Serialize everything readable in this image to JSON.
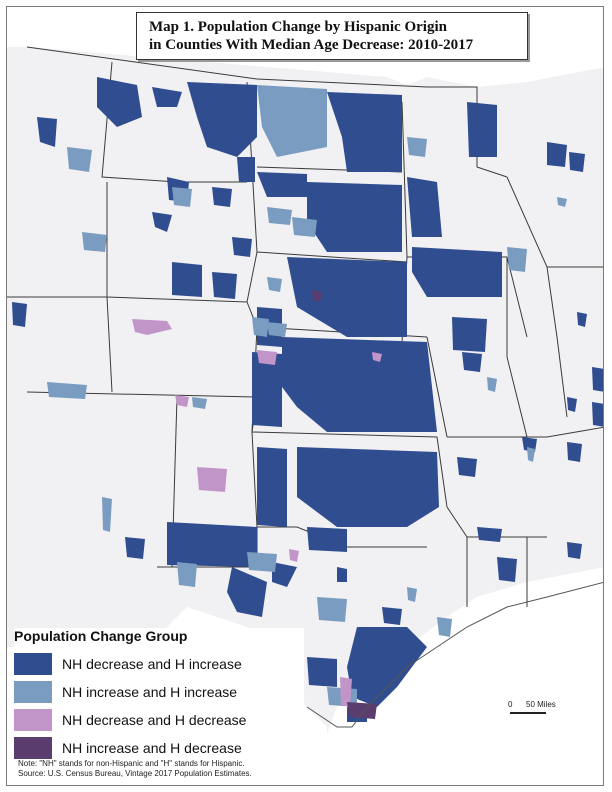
{
  "map": {
    "title_line1": "Map 1. Population Change by Hispanic Origin",
    "title_line2": "in Counties With Median Age Decrease: 2010-2017"
  },
  "legend": {
    "title": "Population Change Group",
    "items": [
      {
        "label": "NH decrease and H increase",
        "color": "#2f4d8f"
      },
      {
        "label": "NH increase and H increase",
        "color": "#7a9cc0"
      },
      {
        "label": "NH decrease and H decrease",
        "color": "#c295c9"
      },
      {
        "label": "NH increase and H decrease",
        "color": "#5a3d6e"
      }
    ]
  },
  "notes": {
    "line1": "Note: \"NH\" stands for non-Hispanic and \"H\" stands for Hispanic.",
    "line2": "Source: U.S. Census Bureau, Vintage 2017 Population Estimates."
  },
  "scale": {
    "zero": "0",
    "label": "50 Miles"
  },
  "colors": {
    "background_region": "#f2f2f5",
    "state_border": "#333333",
    "county_border": "#c8c8c8"
  }
}
